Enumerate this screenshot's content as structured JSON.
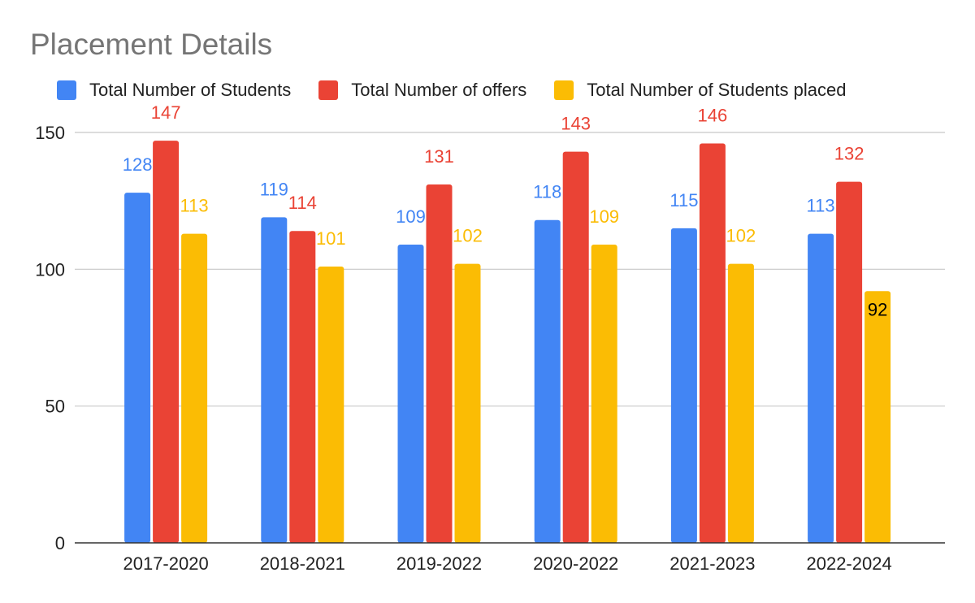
{
  "chart_data": {
    "type": "bar",
    "title": "Placement Details",
    "categories": [
      "2017-2020",
      "2018-2021",
      "2019-2022",
      "2020-2022",
      "2021-2023",
      "2022-2024"
    ],
    "series": [
      {
        "name": "Total Number of Students",
        "color": "#4285F4",
        "values": [
          128,
          119,
          109,
          118,
          115,
          113
        ]
      },
      {
        "name": "Total Number of offers",
        "color": "#EA4335",
        "values": [
          147,
          114,
          131,
          143,
          146,
          132
        ]
      },
      {
        "name": "Total Number of Students placed",
        "color": "#FBBC04",
        "values": [
          113,
          101,
          102,
          109,
          102,
          92
        ]
      }
    ],
    "yticks": [
      "0",
      "50",
      "100",
      "150"
    ],
    "ylim": [
      0,
      150
    ],
    "grid": true,
    "legend_position": "top-left",
    "inside_label_color": "#000000"
  }
}
